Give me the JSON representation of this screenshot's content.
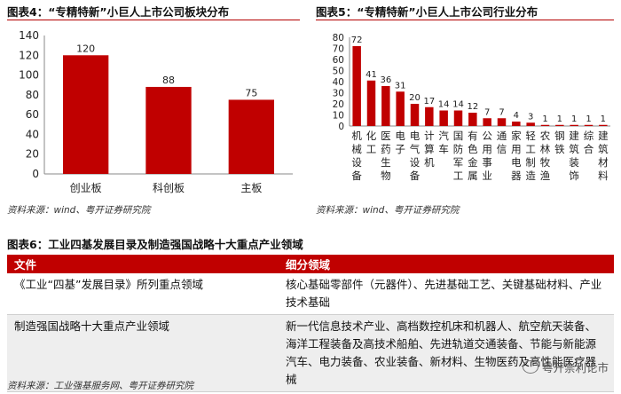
{
  "fig4": {
    "title": "图表4：“专精特新”小巨人上市公司板块分布",
    "source": "资料来源：wind、粤开证券研究院"
  },
  "fig5": {
    "title": "图表5：“专精特新”小巨人上市公司行业分布",
    "source": "资料来源：wind、粤开证券研究院"
  },
  "fig6": {
    "title": "图表6：工业四基发展目录及制造强国战略十大重点产业领域",
    "source": "资料来源：工业强基服务网、粤开证券研究院",
    "header": [
      "文件",
      "细分领域"
    ],
    "rows": [
      {
        "doc": "《工业“四基”发展目录》所列重点领域",
        "detail": "核心基础零部件（元器件）、先进基础工艺、关键基础材料、产业技术基础"
      },
      {
        "doc": "制造强国战略十大重点产业领域",
        "detail": "新一代信息技术产业、高档数控机床和机器人、航空航天装备、海洋工程装备及高技术船舶、先进轨道交通装备、节能与新能源汽车、电力装备、农业装备、新材料、生物医药及高性能医疗器械"
      }
    ]
  },
  "watermark": "粤开崇利论市",
  "colors": {
    "bar": "#c00000",
    "rule": "#b30000",
    "header_bg": "#c00000"
  },
  "chart_data": [
    {
      "type": "bar",
      "title": "图表4：“专精特新”小巨人上市公司板块分布",
      "categories": [
        "创业板",
        "科创板",
        "主板"
      ],
      "values": [
        120,
        88,
        75
      ],
      "ylim": [
        0,
        140
      ],
      "yticks": [
        0,
        20,
        40,
        60,
        80,
        100,
        120,
        140
      ],
      "data_labels": true,
      "grid": false
    },
    {
      "type": "bar",
      "title": "图表5：“专精特新”小巨人上市公司行业分布",
      "categories": [
        "机械设备",
        "化工",
        "医药生物",
        "电子",
        "电气设备",
        "计算机",
        "汽车",
        "国防军工",
        "有色金属",
        "公用事业",
        "通信",
        "家用电器",
        "轻工制造",
        "农林牧渔",
        "钢铁",
        "建筑装饰",
        "综合",
        "建筑材料"
      ],
      "values": [
        72,
        41,
        36,
        31,
        20,
        17,
        14,
        14,
        12,
        7,
        7,
        4,
        3,
        1,
        1,
        1,
        1,
        1
      ],
      "ylim": [
        0,
        80
      ],
      "yticks": [
        0,
        10,
        20,
        30,
        40,
        50,
        60,
        70,
        80
      ],
      "data_labels": true,
      "grid": false
    }
  ]
}
